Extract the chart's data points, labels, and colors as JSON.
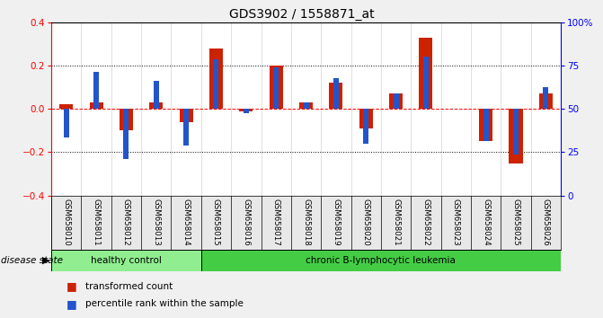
{
  "title": "GDS3902 / 1558871_at",
  "samples": [
    "GSM658010",
    "GSM658011",
    "GSM658012",
    "GSM658013",
    "GSM658014",
    "GSM658015",
    "GSM658016",
    "GSM658017",
    "GSM658018",
    "GSM658019",
    "GSM658020",
    "GSM658021",
    "GSM658022",
    "GSM658023",
    "GSM658024",
    "GSM658025",
    "GSM658026"
  ],
  "red_values": [
    0.02,
    0.03,
    -0.1,
    0.03,
    -0.06,
    0.28,
    -0.01,
    0.2,
    0.03,
    0.12,
    -0.09,
    0.07,
    0.33,
    0.0,
    -0.15,
    -0.25,
    0.07
  ],
  "blue_values": [
    -0.13,
    0.17,
    -0.23,
    0.13,
    -0.17,
    0.23,
    -0.02,
    0.19,
    0.03,
    0.14,
    -0.16,
    0.07,
    0.24,
    0.0,
    -0.15,
    -0.21,
    0.1
  ],
  "red_color": "#cc2200",
  "blue_color": "#2255cc",
  "ylim": [
    -0.4,
    0.4
  ],
  "right_yticks_left": [
    -0.4,
    -0.2,
    0.0,
    0.2,
    0.4
  ],
  "right_ytick_percents": [
    0,
    25,
    50,
    75,
    100
  ],
  "right_yticklabels": [
    "0",
    "25",
    "50",
    "75",
    "100%"
  ],
  "left_yticks": [
    -0.4,
    -0.2,
    0.0,
    0.2,
    0.4
  ],
  "healthy_count": 5,
  "disease_state_label": "disease state",
  "group1_label": "healthy control",
  "group2_label": "chronic B-lymphocytic leukemia",
  "legend1": "transformed count",
  "legend2": "percentile rank within the sample",
  "group1_color": "#90ee90",
  "group2_color": "#44cc44",
  "plot_bg": "#ffffff",
  "fig_bg": "#f0f0f0"
}
